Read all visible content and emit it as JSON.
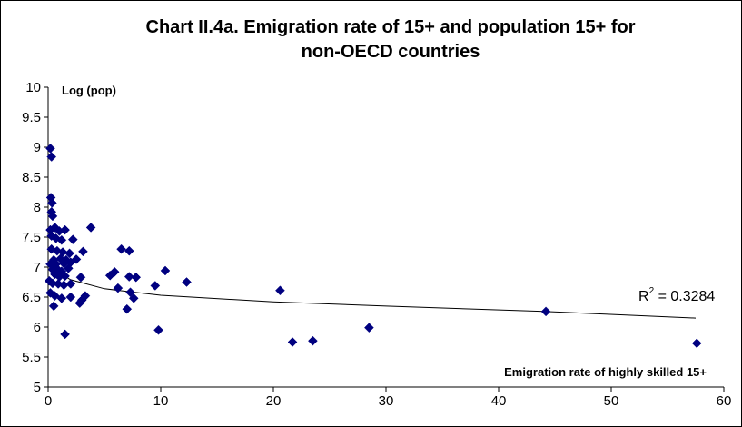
{
  "chart_data": {
    "type": "scatter",
    "title": "Chart II.4a. Emigration rate of 15+ and population 15+ for non-OECD countries",
    "title_lines": [
      "Chart II.4a. Emigration rate of 15+ and population 15+ for",
      "non-OECD countries"
    ],
    "xlabel": "Emigration rate of highly skilled 15+",
    "ylabel": "Log (pop)",
    "xlim": [
      0,
      60
    ],
    "ylim": [
      5,
      10
    ],
    "x_ticks": [
      "0",
      "10",
      "20",
      "30",
      "40",
      "50",
      "60"
    ],
    "y_ticks": [
      "5",
      "5.5",
      "6",
      "6.5",
      "7",
      "7.5",
      "8",
      "8.5",
      "9",
      "9.5",
      "10"
    ],
    "grid": false,
    "marker": "diamond",
    "marker_color": "#000080",
    "trendline": {
      "type": "logarithmic",
      "r2_label": "R",
      "r2_value": " = 0.3284",
      "r2_exponent": "2",
      "points": [
        [
          0.3,
          7.15
        ],
        [
          1,
          6.9
        ],
        [
          2,
          6.79
        ],
        [
          5,
          6.64
        ],
        [
          10,
          6.53
        ],
        [
          20,
          6.42
        ],
        [
          30,
          6.35
        ],
        [
          44,
          6.26
        ],
        [
          57.5,
          6.15
        ]
      ]
    },
    "points": [
      [
        0.2,
        8.98
      ],
      [
        0.3,
        8.84
      ],
      [
        0.25,
        8.16
      ],
      [
        0.35,
        8.07
      ],
      [
        0.3,
        7.92
      ],
      [
        0.4,
        7.85
      ],
      [
        0.2,
        7.62
      ],
      [
        0.3,
        7.52
      ],
      [
        0.6,
        7.66
      ],
      [
        1.0,
        7.6
      ],
      [
        1.5,
        7.62
      ],
      [
        0.7,
        7.48
      ],
      [
        1.2,
        7.45
      ],
      [
        2.2,
        7.46
      ],
      [
        3.8,
        7.66
      ],
      [
        0.3,
        7.3
      ],
      [
        0.8,
        7.27
      ],
      [
        1.3,
        7.25
      ],
      [
        1.9,
        7.23
      ],
      [
        3.1,
        7.26
      ],
      [
        6.5,
        7.3
      ],
      [
        7.2,
        7.27
      ],
      [
        0.5,
        7.12
      ],
      [
        1.1,
        7.14
      ],
      [
        1.6,
        7.12
      ],
      [
        2.5,
        7.13
      ],
      [
        0.2,
        7.05
      ],
      [
        0.7,
        7.05
      ],
      [
        1.4,
        7.06
      ],
      [
        2.0,
        7.08
      ],
      [
        0.4,
        6.96
      ],
      [
        0.8,
        6.97
      ],
      [
        1.2,
        6.93
      ],
      [
        1.8,
        6.98
      ],
      [
        0.6,
        6.88
      ],
      [
        1.0,
        6.84
      ],
      [
        1.5,
        6.85
      ],
      [
        2.9,
        6.83
      ],
      [
        5.5,
        6.86
      ],
      [
        5.9,
        6.92
      ],
      [
        7.2,
        6.84
      ],
      [
        7.8,
        6.83
      ],
      [
        10.4,
        6.94
      ],
      [
        12.3,
        6.75
      ],
      [
        0.1,
        6.77
      ],
      [
        0.4,
        6.73
      ],
      [
        0.9,
        6.72
      ],
      [
        1.4,
        6.7
      ],
      [
        2.0,
        6.72
      ],
      [
        6.2,
        6.65
      ],
      [
        7.3,
        6.58
      ],
      [
        9.5,
        6.69
      ],
      [
        0.2,
        6.57
      ],
      [
        0.6,
        6.52
      ],
      [
        1.2,
        6.48
      ],
      [
        2.0,
        6.5
      ],
      [
        3.0,
        6.45
      ],
      [
        3.3,
        6.52
      ],
      [
        7.6,
        6.48
      ],
      [
        0.5,
        6.35
      ],
      [
        2.8,
        6.4
      ],
      [
        7.0,
        6.3
      ],
      [
        9.8,
        5.95
      ],
      [
        1.5,
        5.88
      ],
      [
        20.6,
        6.61
      ],
      [
        21.7,
        5.75
      ],
      [
        23.5,
        5.77
      ],
      [
        28.5,
        5.99
      ],
      [
        44.2,
        6.26
      ],
      [
        57.6,
        5.73
      ]
    ]
  }
}
